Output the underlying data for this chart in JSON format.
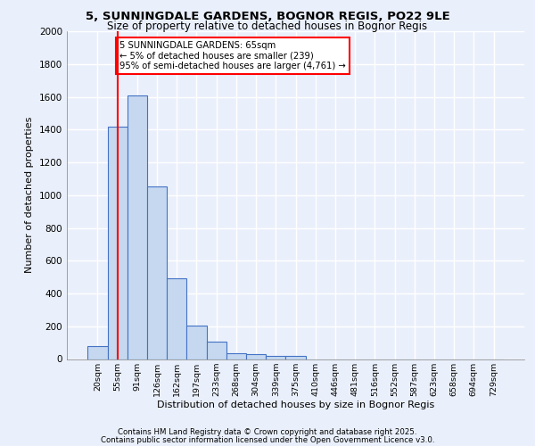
{
  "title1": "5, SUNNINGDALE GARDENS, BOGNOR REGIS, PO22 9LE",
  "title2": "Size of property relative to detached houses in Bognor Regis",
  "xlabel": "Distribution of detached houses by size in Bognor Regis",
  "ylabel": "Number of detached properties",
  "bar_labels": [
    "20sqm",
    "55sqm",
    "91sqm",
    "126sqm",
    "162sqm",
    "197sqm",
    "233sqm",
    "268sqm",
    "304sqm",
    "339sqm",
    "375sqm",
    "410sqm",
    "446sqm",
    "481sqm",
    "516sqm",
    "552sqm",
    "587sqm",
    "623sqm",
    "658sqm",
    "694sqm",
    "729sqm"
  ],
  "bar_values": [
    80,
    1420,
    1610,
    1055,
    490,
    205,
    105,
    38,
    28,
    18,
    18,
    0,
    0,
    0,
    0,
    0,
    0,
    0,
    0,
    0,
    0
  ],
  "bar_color": "#c5d8f0",
  "bar_edge_color": "#4472c4",
  "vline_x": 1.0,
  "vline_color": "red",
  "annotation_text": "5 SUNNINGDALE GARDENS: 65sqm\n← 5% of detached houses are smaller (239)\n95% of semi-detached houses are larger (4,761) →",
  "annotation_box_color": "white",
  "annotation_box_edge_color": "red",
  "ylim": [
    0,
    2000
  ],
  "yticks": [
    0,
    200,
    400,
    600,
    800,
    1000,
    1200,
    1400,
    1600,
    1800,
    2000
  ],
  "footer1": "Contains HM Land Registry data © Crown copyright and database right 2025.",
  "footer2": "Contains public sector information licensed under the Open Government Licence v3.0.",
  "bg_color": "#eaf0fb",
  "plot_bg_color": "#eaf0fb",
  "grid_color": "white"
}
